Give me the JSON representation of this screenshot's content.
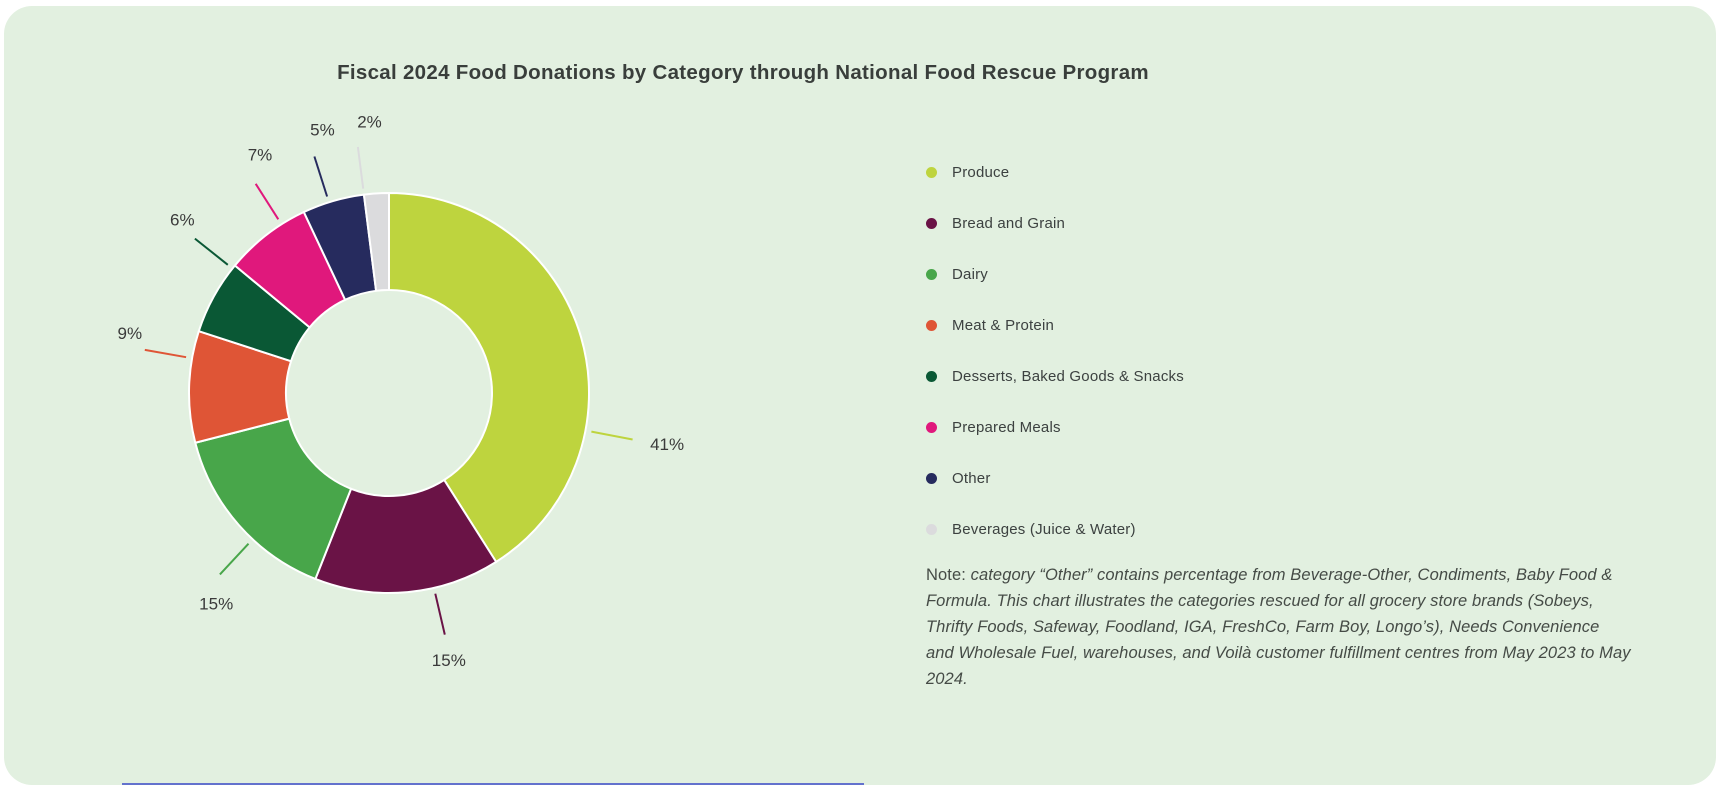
{
  "title": "Fiscal 2024 Food Donations by Category through National Food Rescue Program",
  "chart_data": {
    "type": "pie",
    "subtype": "donut",
    "title": "Fiscal 2024 Food Donations by Category through National Food Rescue Program",
    "unit": "%",
    "categories": [
      "Produce",
      "Bread and Grain",
      "Dairy",
      "Meat & Protein",
      "Desserts, Baked Goods & Snacks",
      "Prepared Meals",
      "Other",
      "Beverages (Juice & Water)"
    ],
    "values": [
      41,
      15,
      15,
      9,
      6,
      7,
      5,
      2
    ],
    "labels": [
      "41%",
      "15%",
      "15%",
      "9%",
      "6%",
      "7%",
      "5%",
      "2%"
    ],
    "colors": [
      "#bed43e",
      "#6a1346",
      "#48a64a",
      "#df5536",
      "#0a5835",
      "#e0187c",
      "#262b5e",
      "#dbdbdd"
    ],
    "legend_position": "right",
    "layout": {
      "start_angle_deg": 0,
      "clockwise": true,
      "inner_radius_ratio": 0.515,
      "leader_angles_deg": [
        100.8,
        167,
        223,
        280,
        308.5,
        327.5,
        342.5,
        352.8
      ],
      "label_angles_deg": [
        101,
        167,
        220.5,
        283,
        309,
        331,
        345.5,
        355.8
      ]
    }
  },
  "legend": {
    "items": [
      {
        "label": "Produce",
        "color": "#bed43e"
      },
      {
        "label": "Bread and Grain",
        "color": "#6a1346"
      },
      {
        "label": "Dairy",
        "color": "#48a64a"
      },
      {
        "label": "Meat & Protein",
        "color": "#df5536"
      },
      {
        "label": "Desserts, Baked Goods & Snacks",
        "color": "#0a5835"
      },
      {
        "label": "Prepared Meals",
        "color": "#e0187c"
      },
      {
        "label": "Other",
        "color": "#262b5e"
      },
      {
        "label": "Beverages (Juice & Water)",
        "color": "#dbdbdd"
      }
    ]
  },
  "note": {
    "prefix": "Note: ",
    "body": "category “Other” contains percentage from Beverage-Other, Condiments, Baby Food & Formula. This chart illustrates the categories rescued for all grocery store brands (Sobeys, Thrifty Foods, Safeway, Foodland, IGA, FreshCo, Farm Boy, Longo’s), Needs Convenience and Wholesale Fuel, warehouses, and Voilà customer fulfillment centres from May 2023 to May 2024."
  },
  "colors": {
    "page_background": "#ffffff",
    "card_background": "#e2f0e0",
    "title_text": "#393e3b",
    "legend_text": "#3c4140",
    "note_text": "#454b46",
    "value_label_text": "#3a3a3a",
    "bottom_accent": "#4353c8"
  }
}
